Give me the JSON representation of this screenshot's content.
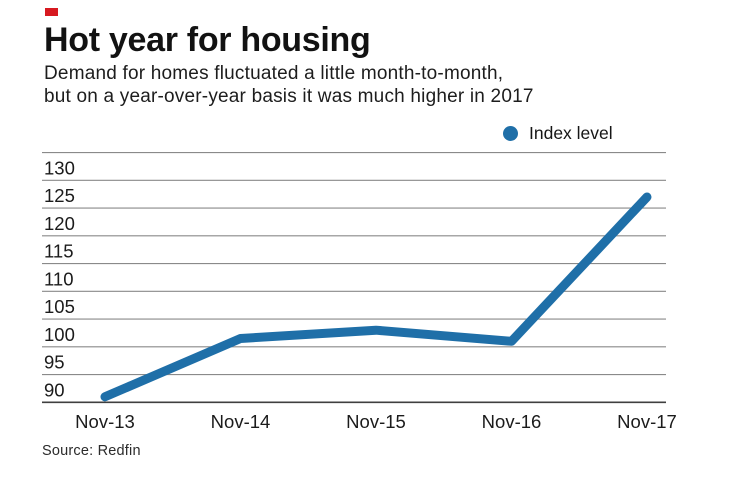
{
  "page": {
    "accent_mark_color": "#d71920",
    "background": "#ffffff"
  },
  "header": {
    "title": "Hot year for housing",
    "subtitle_line1": "Demand for homes fluctuated a little month-to-month,",
    "subtitle_line2": "but on a year-over-year basis it was much higher in 2017"
  },
  "legend": {
    "label": "Index level",
    "marker_color": "#1f6fa8"
  },
  "source": {
    "text": "Source: Redfin"
  },
  "chart_data": {
    "type": "line",
    "title": "Hot year for housing",
    "categories": [
      "Nov-13",
      "Nov-14",
      "Nov-15",
      "Nov-16",
      "Nov-17"
    ],
    "series": [
      {
        "name": "Index level",
        "values": [
          91,
          101.5,
          103,
          101,
          127
        ]
      }
    ],
    "xlabel": "",
    "ylabel": "",
    "ylim": [
      90,
      135
    ],
    "yticks": [
      90,
      95,
      100,
      105,
      110,
      115,
      120,
      125,
      130
    ],
    "ytick_step": 5,
    "grid": "horizontal",
    "legend_position": "top-right",
    "line_color": "#1f6fa8",
    "gridline_color": "#8a8a8a",
    "axis_line_color": "#3f3f3f"
  }
}
